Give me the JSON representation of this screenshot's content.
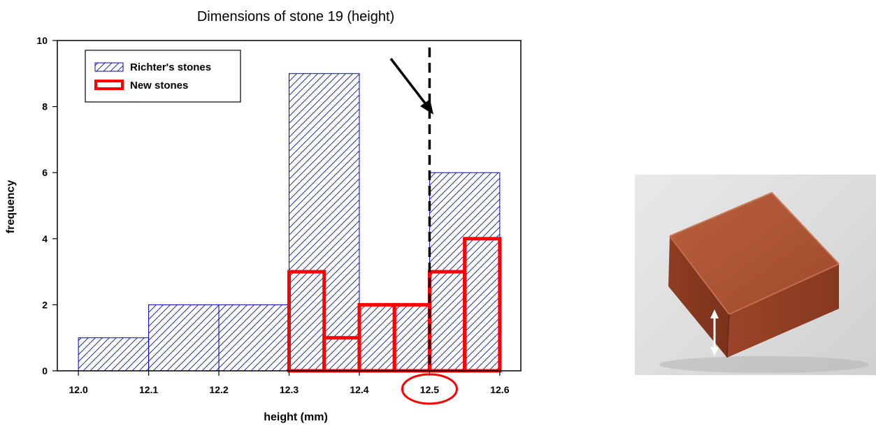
{
  "chart_data": {
    "type": "bar",
    "title": "Dimensions of stone 19 (height)",
    "xlabel": "height (mm)",
    "ylabel": "frequency",
    "xlim": [
      11.97,
      12.63
    ],
    "ylim": [
      0,
      10
    ],
    "x_ticks": [
      "12.0",
      "12.1",
      "12.2",
      "12.3",
      "12.4",
      "12.5",
      "12.6"
    ],
    "y_ticks": [
      "0",
      "2",
      "4",
      "6",
      "8",
      "10"
    ],
    "legend_position": "top-left",
    "grid": false,
    "series": [
      {
        "name": "Richter's stones",
        "style": "hatched",
        "color": "#0000cc",
        "bins": [
          {
            "x0": 12.0,
            "x1": 12.1,
            "value": 1
          },
          {
            "x0": 12.1,
            "x1": 12.2,
            "value": 2
          },
          {
            "x0": 12.2,
            "x1": 12.3,
            "value": 2
          },
          {
            "x0": 12.3,
            "x1": 12.4,
            "value": 9
          },
          {
            "x0": 12.4,
            "x1": 12.5,
            "value": 2
          },
          {
            "x0": 12.5,
            "x1": 12.6,
            "value": 6
          }
        ]
      },
      {
        "name": "New stones",
        "style": "outline",
        "color": "#ff0000",
        "bins": [
          {
            "x0": 12.3,
            "x1": 12.35,
            "value": 3
          },
          {
            "x0": 12.35,
            "x1": 12.4,
            "value": 1
          },
          {
            "x0": 12.4,
            "x1": 12.45,
            "value": 2
          },
          {
            "x0": 12.45,
            "x1": 12.5,
            "value": 2
          },
          {
            "x0": 12.5,
            "x1": 12.55,
            "value": 3
          },
          {
            "x0": 12.55,
            "x1": 12.6,
            "value": 4
          }
        ]
      }
    ],
    "reference_line": {
      "x": 12.5,
      "style": "dashed",
      "color": "#000000"
    },
    "highlighted_tick": "12.5",
    "highlight_color": "#ff0000"
  },
  "photo": {
    "subject": "red-brick-stone",
    "icon": "double-arrow-icon"
  }
}
